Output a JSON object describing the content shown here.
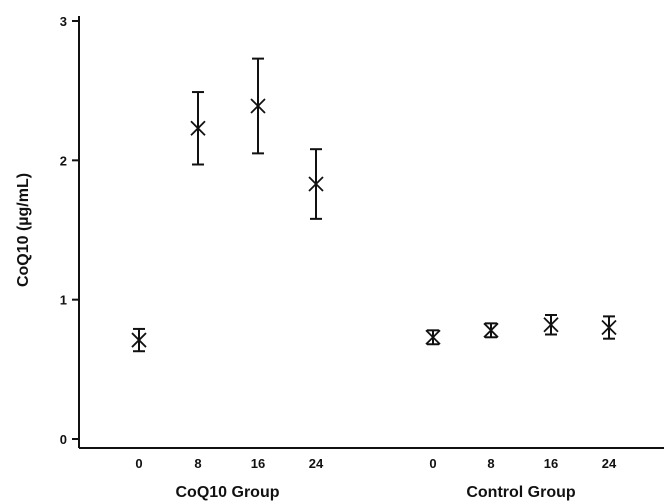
{
  "chart_data": {
    "type": "scatter",
    "ylabel": "CoQ10 (µg/mL)",
    "ylim": [
      0,
      3
    ],
    "yticks": [
      "0",
      "1",
      "2",
      "3"
    ],
    "groups": [
      {
        "name": "CoQ10 Group",
        "x": [
          "0",
          "8",
          "16",
          "24"
        ],
        "values": [
          0.71,
          2.23,
          2.39,
          1.83
        ],
        "err_low": [
          0.63,
          1.97,
          2.05,
          1.58
        ],
        "err_high": [
          0.79,
          2.49,
          2.73,
          2.08
        ]
      },
      {
        "name": "Control Group",
        "x": [
          "0",
          "8",
          "16",
          "24"
        ],
        "values": [
          0.73,
          0.78,
          0.82,
          0.8
        ],
        "err_low": [
          0.68,
          0.73,
          0.75,
          0.72
        ],
        "err_high": [
          0.78,
          0.83,
          0.89,
          0.88
        ]
      }
    ],
    "grid": false,
    "marker": "asterisk",
    "color": "#111111"
  }
}
